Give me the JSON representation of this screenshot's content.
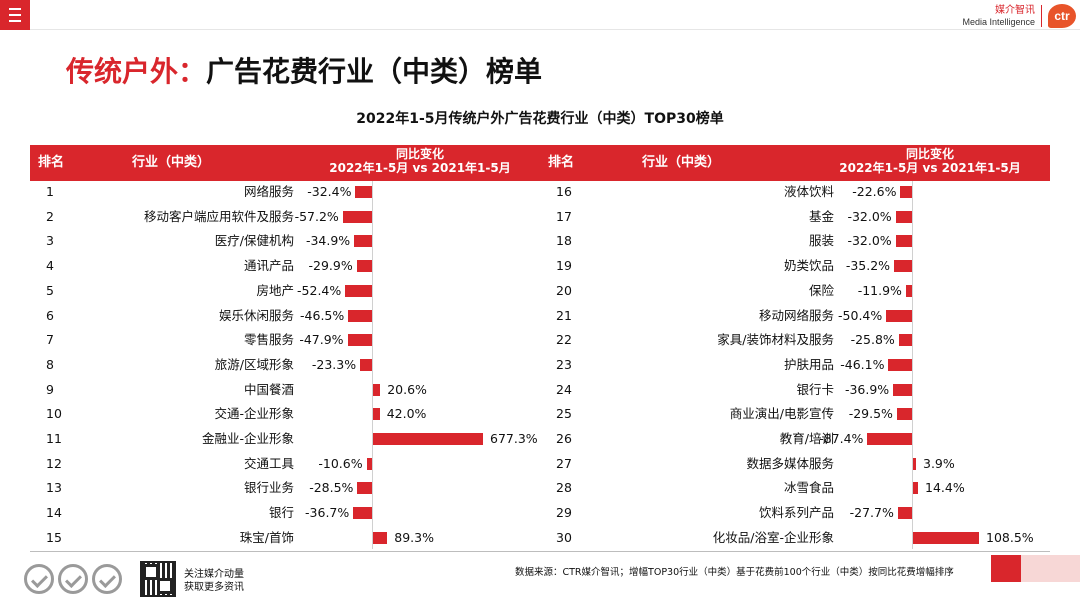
{
  "header": {
    "brand_cn": "媒介智讯",
    "brand_en": "Media Intelligence",
    "logo_text": "ctr"
  },
  "title": {
    "red": "传统户外：",
    "black": "广告花费行业（中类）榜单"
  },
  "subtitle": "2022年1-5月传统户外广告花费行业（中类）TOP30榜单",
  "table_headers": {
    "rank": "排名",
    "industry": "行业（中类）",
    "change_line1": "同比变化",
    "change_line2": "2022年1-5月 vs 2021年1-5月"
  },
  "chart_data": {
    "type": "bar",
    "metric": "同比变化 2022年1-5月 vs 2021年1-5月",
    "rows": [
      {
        "rank": "1",
        "industry": "网络服务",
        "label": "-32.4%",
        "value": -32.4
      },
      {
        "rank": "2",
        "industry": "移动客户端应用软件及服务",
        "label": "-57.2%",
        "value": -57.2
      },
      {
        "rank": "3",
        "industry": "医疗/保健机构",
        "label": "-34.9%",
        "value": -34.9
      },
      {
        "rank": "4",
        "industry": "通讯产品",
        "label": "-29.9%",
        "value": -29.9
      },
      {
        "rank": "5",
        "industry": "房地产",
        "label": "-52.4%",
        "value": -52.4
      },
      {
        "rank": "6",
        "industry": "娱乐休闲服务",
        "label": "-46.5%",
        "value": -46.5
      },
      {
        "rank": "7",
        "industry": "零售服务",
        "label": "-47.9%",
        "value": -47.9
      },
      {
        "rank": "8",
        "industry": "旅游/区域形象",
        "label": "-23.3%",
        "value": -23.3
      },
      {
        "rank": "9",
        "industry": "中国餐酒",
        "label": "20.6%",
        "value": 20.6
      },
      {
        "rank": "10",
        "industry": "交通-企业形象",
        "label": "42.0%",
        "value": 42.0
      },
      {
        "rank": "11",
        "industry": "金融业-企业形象",
        "label": "677.3%",
        "value": 677.3
      },
      {
        "rank": "12",
        "industry": "交通工具",
        "label": "-10.6%",
        "value": -10.6
      },
      {
        "rank": "13",
        "industry": "银行业务",
        "label": "-28.5%",
        "value": -28.5
      },
      {
        "rank": "14",
        "industry": "银行",
        "label": "-36.7%",
        "value": -36.7
      },
      {
        "rank": "15",
        "industry": "珠宝/首饰",
        "label": "89.3%",
        "value": 89.3
      },
      {
        "rank": "16",
        "industry": "液体饮料",
        "label": "-22.6%",
        "value": -22.6
      },
      {
        "rank": "17",
        "industry": "基金",
        "label": "-32.0%",
        "value": -32.0
      },
      {
        "rank": "18",
        "industry": "服装",
        "label": "-32.0%",
        "value": -32.0
      },
      {
        "rank": "19",
        "industry": "奶类饮品",
        "label": "-35.2%",
        "value": -35.2
      },
      {
        "rank": "20",
        "industry": "保险",
        "label": "-11.9%",
        "value": -11.9
      },
      {
        "rank": "21",
        "industry": "移动网络服务",
        "label": "-50.4%",
        "value": -50.4
      },
      {
        "rank": "22",
        "industry": "家具/装饰材料及服务",
        "label": "-25.8%",
        "value": -25.8
      },
      {
        "rank": "23",
        "industry": "护肤用品",
        "label": "-46.1%",
        "value": -46.1
      },
      {
        "rank": "24",
        "industry": "银行卡",
        "label": "-36.9%",
        "value": -36.9
      },
      {
        "rank": "25",
        "industry": "商业演出/电影宣传",
        "label": "-29.5%",
        "value": -29.5
      },
      {
        "rank": "26",
        "industry": "教育/培训",
        "label": "-87.4%",
        "value": -87.4
      },
      {
        "rank": "27",
        "industry": "数据多媒体服务",
        "label": "3.9%",
        "value": 3.9
      },
      {
        "rank": "28",
        "industry": "冰雪食品",
        "label": "14.4%",
        "value": 14.4
      },
      {
        "rank": "29",
        "industry": "饮料系列产品",
        "label": "-27.7%",
        "value": -27.7
      },
      {
        "rank": "30",
        "industry": "化妆品/浴室-企业形象",
        "label": "108.5%",
        "value": 108.5
      }
    ]
  },
  "footer": {
    "follow_line1": "关注媒介动量",
    "follow_line2": "获取更多资讯",
    "source": "数据来源：CTR媒介智讯；增幅TOP30行业（中类）基于花费前100个行业（中类）按同比花费增幅排序"
  },
  "colors": {
    "accent": "#d9262c",
    "pink": "#f7d7d6"
  }
}
